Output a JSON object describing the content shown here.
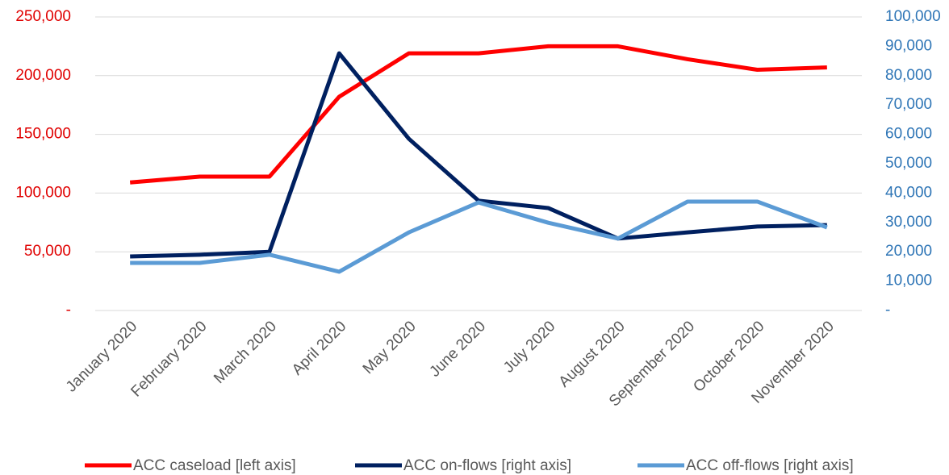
{
  "chart_data": {
    "type": "line",
    "categories": [
      "January 2020",
      "February 2020",
      "March 2020",
      "April 2020",
      "May 2020",
      "June 2020",
      "July 2020",
      "August 2020",
      "September 2020",
      "October 2020",
      "November 2020"
    ],
    "series": [
      {
        "name": "ACC caseload [left axis]",
        "color": "#ff0000",
        "values": [
          109000,
          114000,
          114000,
          182000,
          219000,
          219000,
          225000,
          225000,
          214000,
          205000,
          207000
        ]
      },
      {
        "name": "ACC on-flows [right axis]",
        "color": "#002060",
        "axis": "y2",
        "values": [
          18400,
          19000,
          20000,
          87600,
          58500,
          37400,
          34900,
          24500,
          26600,
          28600,
          29100
        ]
      },
      {
        "name": "ACC off-flows [right axis]",
        "color": "#5b9bd5",
        "axis": "y2",
        "values": [
          16200,
          16200,
          19000,
          13200,
          26600,
          36800,
          29900,
          24500,
          37100,
          37100,
          28300
        ]
      }
    ],
    "ylim": [
      0,
      250000
    ],
    "yticks": [
      {
        "value": 0,
        "label": "-"
      },
      {
        "value": 50000,
        "label": "50,000"
      },
      {
        "value": 100000,
        "label": "100,000"
      },
      {
        "value": 150000,
        "label": "150,000"
      },
      {
        "value": 200000,
        "label": "200,000"
      },
      {
        "value": 250000,
        "label": "250,000"
      }
    ],
    "y2lim": [
      0,
      100000
    ],
    "y2ticks": [
      {
        "value": 0,
        "label": "-"
      },
      {
        "value": 10000,
        "label": "10,000"
      },
      {
        "value": 20000,
        "label": "20,000"
      },
      {
        "value": 30000,
        "label": "30,000"
      },
      {
        "value": 40000,
        "label": "40,000"
      },
      {
        "value": 50000,
        "label": "50,000"
      },
      {
        "value": 60000,
        "label": "60,000"
      },
      {
        "value": 70000,
        "label": "70,000"
      },
      {
        "value": 80000,
        "label": "80,000"
      },
      {
        "value": 90000,
        "label": "90,000"
      },
      {
        "value": 100000,
        "label": "100,000"
      }
    ],
    "ytick_color": "#e00000",
    "y2tick_color": "#2e75b6",
    "grid": true,
    "legend": "bottom"
  }
}
